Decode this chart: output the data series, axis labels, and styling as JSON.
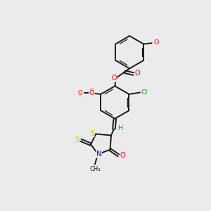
{
  "bg_color": "#ebebeb",
  "bond_color": "#1a1a1a",
  "atom_colors": {
    "O": "#ff0000",
    "N": "#0000ff",
    "S": "#cccc00",
    "Cl": "#00aa00",
    "H": "#008888",
    "C": "#1a1a1a"
  }
}
